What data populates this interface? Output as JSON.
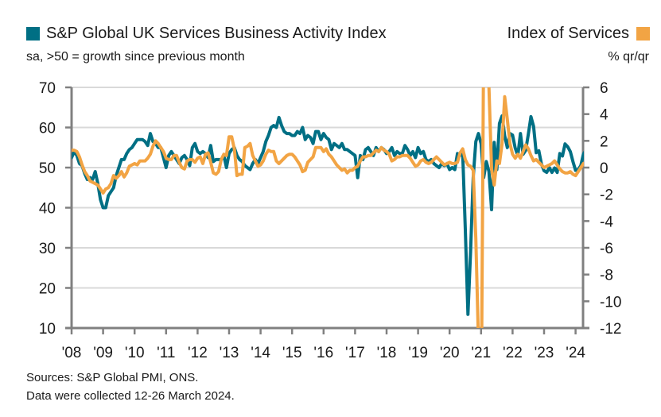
{
  "legend": {
    "left": {
      "label": "S&P Global UK Services Business Activity Index",
      "color": "#006f84"
    },
    "right": {
      "label": "Index of Services",
      "color": "#f2a444"
    }
  },
  "subtitles": {
    "left": "sa, >50 = growth since previous month",
    "right": "% qr/qr"
  },
  "footer": {
    "sources": "Sources: S&P Global PMI, ONS.",
    "note": "Data were collected 12-26 March 2024."
  },
  "chart_data": {
    "type": "line",
    "title": "",
    "x_start": "2008-01",
    "x_tick_labels": [
      "'08",
      "'09",
      "'10",
      "'11",
      "'12",
      "'13",
      "'14",
      "'15",
      "'16",
      "'17",
      "'18",
      "'19",
      "'20",
      "'21",
      "'22",
      "'23",
      "'24"
    ],
    "y_left": {
      "label": "sa, >50 = growth since previous month",
      "range": [
        10,
        70
      ],
      "ticks": [
        10,
        20,
        30,
        40,
        50,
        60,
        70
      ]
    },
    "y_right": {
      "label": "% qr/qr",
      "range": [
        -12,
        6
      ],
      "ticks": [
        -12,
        -10,
        -8,
        -6,
        -4,
        -2,
        0,
        2,
        4,
        6
      ]
    },
    "grid": true,
    "series": [
      {
        "name": "S&P Global UK Services Business Activity Index",
        "axis": "left",
        "frequency": "monthly",
        "values": [
          52.5,
          54,
          53,
          51,
          50.5,
          48.5,
          47,
          47.5,
          47,
          49,
          46,
          42,
          40,
          40,
          43,
          44,
          45,
          48,
          50,
          52,
          52,
          53.5,
          54.5,
          55,
          56,
          57,
          57,
          57,
          56.5,
          55.5,
          58.5,
          56.5,
          56,
          55,
          55,
          52.5,
          50,
          53,
          54,
          53,
          52,
          51,
          52.5,
          53,
          52,
          50.5,
          55,
          56,
          54,
          53.5,
          54,
          53.5,
          52.5,
          55.5,
          51.5,
          52,
          52,
          52,
          53,
          50,
          53.5,
          54.5,
          55,
          53,
          52,
          51.5,
          50.5,
          50,
          49.5,
          51,
          52,
          51,
          52.5,
          54,
          56.5,
          58,
          60,
          60.5,
          60,
          62.5,
          60.5,
          59,
          58.5,
          58.5,
          58,
          58,
          59,
          58.5,
          60,
          57,
          58,
          57.5,
          56,
          59,
          59,
          57,
          58.5,
          57.5,
          57,
          54.5,
          56,
          55.5,
          55,
          56,
          54.5,
          54.5,
          54,
          53.5,
          53,
          47.5,
          53,
          52,
          54.5,
          55,
          54,
          53,
          55,
          54,
          55,
          54.5,
          53.5,
          54,
          55,
          53,
          54,
          53.5,
          53.5,
          55.5,
          54.5,
          53,
          54,
          52.5,
          55,
          53.5,
          54,
          52,
          51.5,
          52,
          51,
          50.5,
          50,
          51,
          50.5,
          51,
          49.5,
          50,
          49.5,
          53.5,
          53,
          53.5,
          34.5,
          13.4,
          29,
          47.5,
          56.5,
          58.5,
          56,
          47.5,
          51.5,
          49,
          39.5,
          56.3,
          49.5,
          61,
          62.9,
          57.9,
          55,
          58.5,
          58.1,
          54.9,
          53,
          58.5,
          53.3,
          54.3,
          58.3,
          62.7,
          60.3,
          53.7,
          54.2,
          50.9,
          49.2,
          48.8,
          50,
          48.8,
          49.9,
          48.8,
          53.5,
          52.9,
          55.9,
          55.2,
          54,
          51.5,
          49.3,
          49.5,
          50.5,
          53.4,
          54.3,
          53.8,
          53.1
        ],
        "color": "#006f84"
      },
      {
        "name": "Index of Services",
        "axis": "right",
        "frequency": "monthly (rolling quarter-on-quarter)",
        "values": [
          1.3,
          1.3,
          1.2,
          0.8,
          0.2,
          -0.3,
          -0.6,
          -1.0,
          -1.1,
          -1.2,
          -1.3,
          -1.6,
          -1.9,
          -1.6,
          -1.5,
          -1.2,
          -0.6,
          -0.8,
          -0.6,
          -0.3,
          -0.7,
          -0.4,
          0.1,
          0.2,
          0.3,
          0.2,
          0.5,
          0.5,
          0.5,
          0.7,
          1.0,
          1.6,
          2.0,
          1.8,
          1.5,
          1.2,
          0.7,
          0.6,
          0.6,
          0.9,
          0.9,
          0.4,
          0.0,
          -0.1,
          0.5,
          0.6,
          0.6,
          0.4,
          0.7,
          0.8,
          0.3,
          1.0,
          1.1,
          0.4,
          -0.4,
          -0.5,
          -0.3,
          0.6,
          1.0,
          0.9,
          2.3,
          2.3,
          1.4,
          -0.6,
          -0.5,
          -0.5,
          1.5,
          1.6,
          1.8,
          0.9,
          0.5,
          0.1,
          0.2,
          0.5,
          1.0,
          1.3,
          1.2,
          1.2,
          0.5,
          0.3,
          0.5,
          0.7,
          0.9,
          1.0,
          1.0,
          0.8,
          0.5,
          0.2,
          -0.3,
          -0.2,
          0.4,
          0.6,
          0.8,
          1.5,
          1.5,
          1.5,
          1.2,
          1.4,
          1.0,
          0.8,
          0.5,
          0.2,
          0.0,
          -0.2,
          -0.1,
          -0.4,
          -0.2,
          -0.2,
          0.0,
          0.1,
          0.5,
          0.8,
          0.8,
          0.9,
          0.9,
          1.1,
          1.3,
          1.2,
          1.5,
          1.3,
          1.2,
          1.0,
          0.5,
          0.6,
          0.8,
          0.8,
          0.9,
          0.9,
          0.9,
          0.7,
          0.4,
          0.1,
          0.2,
          0.5,
          0.6,
          0.4,
          0.3,
          0.4,
          0.6,
          0.8,
          0.6,
          0.4,
          0.2,
          0.3,
          0.4,
          0.3,
          0.3,
          0.4,
          1.1,
          1.4,
          0.6,
          0.2,
          0.1,
          -0.2,
          -5.3,
          -13.0,
          -20.0,
          10.0,
          16.0,
          6.0,
          -0.1,
          -1.3,
          0.5,
          0.3,
          1.8,
          5.3,
          3.6,
          1.8,
          1.0,
          0.7,
          1.0,
          0.7,
          1.2,
          1.7,
          1.4,
          0.9,
          0.5,
          0.6,
          0.4,
          0.2,
          0.0,
          0.1,
          0.2,
          0.3,
          0.5,
          0.2,
          -0.1,
          -0.3,
          -0.4,
          -0.4,
          -0.3,
          -0.5,
          -0.6,
          -0.3,
          0.0,
          0.3
        ],
        "color": "#f2a444"
      }
    ]
  }
}
